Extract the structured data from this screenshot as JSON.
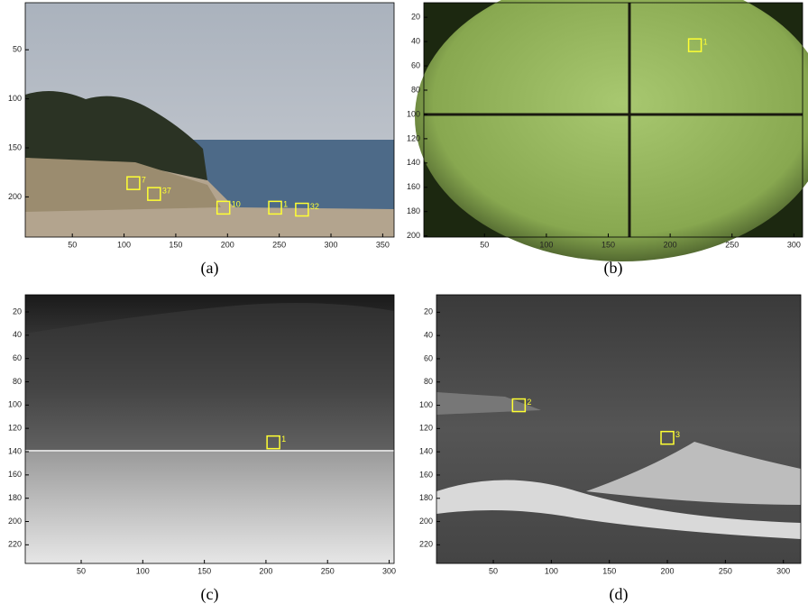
{
  "panels": [
    {
      "caption": "(a)",
      "xlim": [
        4.5,
        361
      ],
      "ylim": [
        2,
        241
      ],
      "xticks": [
        50,
        100,
        150,
        200,
        250,
        300,
        350
      ],
      "yticks": [
        50,
        100,
        150,
        200
      ],
      "boxes": [
        {
          "label": "7",
          "x": 109,
          "y": 186
        },
        {
          "label": "37",
          "x": 129,
          "y": 197
        },
        {
          "label": "10",
          "x": 196,
          "y": 211
        },
        {
          "label": "1",
          "x": 246,
          "y": 211
        },
        {
          "label": "32",
          "x": 272,
          "y": 213
        }
      ]
    },
    {
      "caption": "(b)",
      "xlim": [
        1,
        307
      ],
      "ylim": [
        8,
        201
      ],
      "xticks": [
        50,
        100,
        150,
        200,
        250,
        300
      ],
      "yticks": [
        20,
        40,
        60,
        80,
        100,
        120,
        140,
        160,
        180,
        200
      ],
      "boxes": [
        {
          "label": "1",
          "x": 220,
          "y": 43
        }
      ]
    },
    {
      "caption": "(c)",
      "xlim": [
        4.6,
        304
      ],
      "ylim": [
        5.3,
        236
      ],
      "xticks": [
        50,
        100,
        150,
        200,
        250,
        300
      ],
      "yticks": [
        20,
        40,
        60,
        80,
        100,
        120,
        140,
        160,
        180,
        200,
        220
      ],
      "boxes": [
        {
          "label": "1",
          "x": 206,
          "y": 132
        }
      ]
    },
    {
      "caption": "(d)",
      "xlim": [
        1,
        315
      ],
      "ylim": [
        5,
        236
      ],
      "xticks": [
        50,
        100,
        150,
        200,
        250,
        300
      ],
      "yticks": [
        20,
        40,
        60,
        80,
        100,
        120,
        140,
        160,
        180,
        200,
        220
      ],
      "boxes": [
        {
          "label": "2",
          "x": 72,
          "y": 100
        },
        {
          "label": "3",
          "x": 200,
          "y": 128
        }
      ]
    }
  ]
}
